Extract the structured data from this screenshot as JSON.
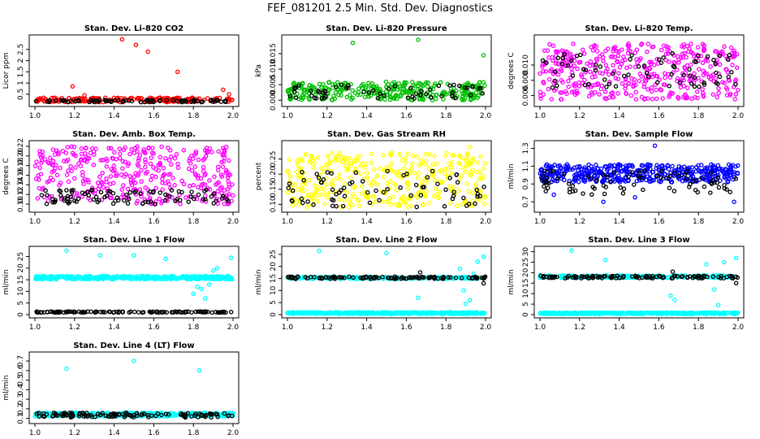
{
  "figure_title": "FEF_081201  2.5 Min. Std. Dev. Diagnostics",
  "chart_data": [
    {
      "type": "scatter",
      "title": "Stan. Dev. Li-820 CO2",
      "ylabel": "Licor ppm",
      "xlim": [
        1.0,
        2.0
      ],
      "ylim": [
        0.1,
        3.0
      ],
      "xticks": [
        "1.0",
        "1.2",
        "1.4",
        "1.6",
        "1.8",
        "2.0"
      ],
      "yticks": [
        {
          "v": 0.5,
          "label": "0.5"
        },
        {
          "v": 1.0,
          "label": "1"
        },
        {
          "v": 1.5,
          "label": "1.5"
        },
        {
          "v": 2.0,
          "label": "2"
        },
        {
          "v": 2.5,
          "label": "2.5"
        }
      ],
      "series": [
        {
          "color": "#ff0000",
          "x_range": [
            1.0,
            2.0
          ],
          "n": 200,
          "y_min": 0.15,
          "y_max": 0.35,
          "outliers": [
            [
              1.19,
              0.85
            ],
            [
              1.44,
              2.95
            ],
            [
              1.51,
              2.7
            ],
            [
              1.57,
              2.4
            ],
            [
              1.72,
              1.5
            ],
            [
              1.95,
              0.7
            ],
            [
              1.98,
              0.5
            ],
            [
              1.25,
              0.45
            ]
          ]
        },
        {
          "color": "#000000",
          "x_range": [
            1.0,
            2.0
          ],
          "n": 80,
          "y_min": 0.15,
          "y_max": 0.25,
          "outliers": []
        }
      ]
    },
    {
      "type": "scatter",
      "title": "Stan. Dev. Li-820 Pressure",
      "ylabel": "kPa",
      "xlim": [
        1.0,
        2.0
      ],
      "ylim": [
        -0.001,
        0.02
      ],
      "xticks": [
        "1.0",
        "1.2",
        "1.4",
        "1.6",
        "1.8",
        "2.0"
      ],
      "yticks": [
        {
          "v": 0.0,
          "label": "0.000"
        },
        {
          "v": 0.005,
          "label": "0.005"
        },
        {
          "v": 0.01,
          "label": "0.010"
        },
        {
          "v": 0.015,
          "label": "0.015"
        }
      ],
      "series": [
        {
          "color": "#00c000",
          "x_range": [
            1.0,
            2.0
          ],
          "n": 320,
          "y_min": 0.0,
          "y_max": 0.006,
          "outliers": [
            [
              1.33,
              0.0185
            ],
            [
              1.66,
              0.0195
            ],
            [
              1.99,
              0.0145
            ]
          ]
        },
        {
          "color": "#000000",
          "x_range": [
            1.0,
            2.0
          ],
          "n": 60,
          "y_min": 0.0005,
          "y_max": 0.005,
          "outliers": []
        }
      ]
    },
    {
      "type": "scatter",
      "title": "Stan. Dev. Li-820 Temp.",
      "ylabel": "degrees C",
      "xlim": [
        1.0,
        2.0
      ],
      "ylim": [
        0.005,
        0.0135
      ],
      "xticks": [
        "1.0",
        "1.2",
        "1.4",
        "1.6",
        "1.8",
        "2.0"
      ],
      "yticks": [
        {
          "v": 0.006,
          "label": "0.006"
        },
        {
          "v": 0.008,
          "label": "0.008"
        },
        {
          "v": 0.01,
          "label": "0.010"
        }
      ],
      "series": [
        {
          "color": "#ff00ff",
          "x_range": [
            1.0,
            2.0
          ],
          "n": 420,
          "y_min": 0.0055,
          "y_max": 0.0128,
          "outliers": []
        },
        {
          "color": "#000000",
          "x_range": [
            1.0,
            2.0
          ],
          "n": 70,
          "y_min": 0.007,
          "y_max": 0.0115,
          "outliers": []
        }
      ]
    },
    {
      "type": "scatter",
      "title": "Stan. Dev. Amb. Box Temp.",
      "ylabel": "degrees C",
      "xlim": [
        1.0,
        2.0
      ],
      "ylim": [
        0.09,
        0.225
      ],
      "xticks": [
        "1.0",
        "1.2",
        "1.4",
        "1.6",
        "1.8",
        "2.0"
      ],
      "yticks": [
        {
          "v": 0.1,
          "label": "0.10"
        },
        {
          "v": 0.12,
          "label": "0.12"
        },
        {
          "v": 0.14,
          "label": "0.14"
        },
        {
          "v": 0.16,
          "label": "0.16"
        },
        {
          "v": 0.18,
          "label": "0.18"
        },
        {
          "v": 0.2,
          "label": "0.20"
        },
        {
          "v": 0.22,
          "label": "0.22"
        }
      ],
      "series": [
        {
          "color": "#ff00ff",
          "x_range": [
            1.0,
            2.0
          ],
          "n": 380,
          "y_min": 0.1,
          "y_max": 0.22,
          "outliers": []
        },
        {
          "color": "#000000",
          "x_range": [
            1.0,
            2.0
          ],
          "n": 90,
          "y_min": 0.1,
          "y_max": 0.13,
          "outliers": []
        }
      ]
    },
    {
      "type": "scatter",
      "title": "Stan. Dev. Gas Stream RH",
      "ylabel": "percent",
      "xlim": [
        1.0,
        2.0
      ],
      "ylim": [
        0.085,
        0.3
      ],
      "xticks": [
        "1.0",
        "1.2",
        "1.4",
        "1.6",
        "1.8",
        "2.0"
      ],
      "yticks": [
        {
          "v": 0.1,
          "label": "0.10"
        },
        {
          "v": 0.15,
          "label": "0.15"
        },
        {
          "v": 0.2,
          "label": "0.20"
        },
        {
          "v": 0.25,
          "label": "0.25"
        }
      ],
      "series": [
        {
          "color": "#ffff00",
          "x_range": [
            1.0,
            2.0
          ],
          "n": 380,
          "y_min": 0.09,
          "y_max": 0.27,
          "outliers": [
            [
              1.92,
              0.29
            ]
          ]
        },
        {
          "color": "#000000",
          "x_range": [
            1.0,
            2.0
          ],
          "n": 70,
          "y_min": 0.09,
          "y_max": 0.21,
          "outliers": []
        }
      ]
    },
    {
      "type": "scatter",
      "title": "Stan. Dev. Sample Flow",
      "ylabel": "ml/min",
      "xlim": [
        1.0,
        2.0
      ],
      "ylim": [
        0.62,
        1.35
      ],
      "xticks": [
        "1.0",
        "1.2",
        "1.4",
        "1.6",
        "1.8",
        "2.0"
      ],
      "yticks": [
        {
          "v": 0.7,
          "label": "0.7"
        },
        {
          "v": 0.9,
          "label": "0.9"
        },
        {
          "v": 1.1,
          "label": "1.1"
        },
        {
          "v": 1.3,
          "label": "1.3"
        }
      ],
      "series": [
        {
          "color": "#0000ff",
          "x_range": [
            1.0,
            2.0
          ],
          "n": 430,
          "y_min": 0.92,
          "y_max": 1.12,
          "outliers": [
            [
              1.58,
              1.33
            ],
            [
              1.32,
              0.7
            ],
            [
              1.98,
              0.7
            ],
            [
              1.07,
              0.78
            ],
            [
              1.48,
              0.75
            ]
          ]
        },
        {
          "color": "#000000",
          "x_range": [
            1.0,
            2.0
          ],
          "n": 80,
          "y_min": 0.78,
          "y_max": 1.05,
          "outliers": []
        }
      ]
    },
    {
      "type": "scatter",
      "title": "Stan. Dev. Line 1 Flow",
      "ylabel": "ml/min",
      "xlim": [
        1.0,
        2.0
      ],
      "ylim": [
        0,
        28
      ],
      "xticks": [
        "1.0",
        "1.2",
        "1.4",
        "1.6",
        "1.8",
        "2.0"
      ],
      "yticks": [
        {
          "v": 0,
          "label": "0"
        },
        {
          "v": 5,
          "label": "5"
        },
        {
          "v": 10,
          "label": "10"
        },
        {
          "v": 15,
          "label": "15"
        },
        {
          "v": 20,
          "label": "20"
        },
        {
          "v": 25,
          "label": "25"
        }
      ],
      "series": [
        {
          "color": "#00ffff",
          "x_range": [
            1.0,
            2.0
          ],
          "n": 380,
          "y_min": 15.2,
          "y_max": 16.6,
          "outliers": [
            [
              1.16,
              27.5
            ],
            [
              1.33,
              25.5
            ],
            [
              1.5,
              25.5
            ],
            [
              1.66,
              24
            ],
            [
              1.99,
              24.5
            ],
            [
              1.8,
              9
            ],
            [
              1.84,
              11
            ],
            [
              1.86,
              7
            ],
            [
              1.88,
              13
            ],
            [
              1.9,
              19
            ],
            [
              1.92,
              20
            ],
            [
              1.82,
              12
            ]
          ]
        },
        {
          "color": "#000000",
          "x_range": [
            1.0,
            2.0
          ],
          "n": 120,
          "y_min": 0.9,
          "y_max": 1.3,
          "outliers": []
        }
      ]
    },
    {
      "type": "scatter",
      "title": "Stan. Dev. Line 2 Flow",
      "ylabel": "ml/min",
      "xlim": [
        1.0,
        2.0
      ],
      "ylim": [
        0,
        27
      ],
      "xticks": [
        "1.0",
        "1.2",
        "1.4",
        "1.6",
        "1.8",
        "2.0"
      ],
      "yticks": [
        {
          "v": 0,
          "label": "0"
        },
        {
          "v": 5,
          "label": "5"
        },
        {
          "v": 10,
          "label": "10"
        },
        {
          "v": 15,
          "label": "15"
        },
        {
          "v": 20,
          "label": "20"
        },
        {
          "v": 25,
          "label": "25"
        }
      ],
      "series": [
        {
          "color": "#00ffff",
          "x_range": [
            1.0,
            2.0
          ],
          "n": 400,
          "y_min": 0.3,
          "y_max": 1.0,
          "outliers": [
            [
              1.16,
              26.5
            ],
            [
              1.5,
              25.5
            ],
            [
              1.66,
              7
            ],
            [
              1.87,
              19
            ],
            [
              1.89,
              10
            ],
            [
              1.9,
              4.5
            ],
            [
              1.92,
              6
            ],
            [
              1.94,
              17
            ],
            [
              1.96,
              22
            ],
            [
              1.99,
              24
            ]
          ]
        },
        {
          "color": "#00ffff",
          "x_range": [
            1.0,
            1.98
          ],
          "n": 200,
          "y_min": 14.8,
          "y_max": 15.7,
          "outliers": []
        },
        {
          "color": "#000000",
          "x_range": [
            1.0,
            2.0
          ],
          "n": 110,
          "y_min": 14.8,
          "y_max": 15.8,
          "outliers": [
            [
              1.67,
              17.5
            ],
            [
              1.99,
              13
            ]
          ]
        }
      ]
    },
    {
      "type": "scatter",
      "title": "Stan. Dev. Line 3 Flow",
      "ylabel": "ml/min",
      "xlim": [
        1.0,
        2.0
      ],
      "ylim": [
        0,
        31
      ],
      "xticks": [
        "1.0",
        "1.2",
        "1.4",
        "1.6",
        "1.8",
        "2.0"
      ],
      "yticks": [
        {
          "v": 0,
          "label": "0"
        },
        {
          "v": 5,
          "label": "5"
        },
        {
          "v": 10,
          "label": "10"
        },
        {
          "v": 15,
          "label": "15"
        },
        {
          "v": 20,
          "label": "20"
        },
        {
          "v": 25,
          "label": "25"
        },
        {
          "v": 30,
          "label": "30"
        }
      ],
      "series": [
        {
          "color": "#00ffff",
          "x_range": [
            1.0,
            2.0
          ],
          "n": 400,
          "y_min": 0.3,
          "y_max": 1.0,
          "outliers": [
            [
              1.16,
              30.5
            ],
            [
              1.33,
              26
            ],
            [
              1.66,
              9
            ],
            [
              1.68,
              7
            ],
            [
              1.9,
              4.5
            ],
            [
              1.88,
              12
            ],
            [
              1.84,
              24
            ],
            [
              1.93,
              25
            ],
            [
              1.99,
              27
            ]
          ]
        },
        {
          "color": "#00ffff",
          "x_range": [
            1.0,
            1.98
          ],
          "n": 200,
          "y_min": 17.5,
          "y_max": 18.7,
          "outliers": []
        },
        {
          "color": "#000000",
          "x_range": [
            1.0,
            2.0
          ],
          "n": 110,
          "y_min": 17.3,
          "y_max": 18.5,
          "outliers": [
            [
              1.67,
              20.5
            ],
            [
              1.99,
              15
            ]
          ]
        }
      ]
    },
    {
      "type": "scatter",
      "title": "Stan. Dev. Line 4 (LT) Flow",
      "ylabel": "ml/min",
      "xlim": [
        1.0,
        2.0
      ],
      "ylim": [
        0.08,
        0.76
      ],
      "xticks": [
        "1.0",
        "1.2",
        "1.4",
        "1.6",
        "1.8",
        "2.0"
      ],
      "yticks": [
        {
          "v": 0.1,
          "label": "0.1"
        },
        {
          "v": 0.2,
          "label": "0.2"
        },
        {
          "v": 0.3,
          "label": "0.3"
        },
        {
          "v": 0.4,
          "label": "0.4"
        },
        {
          "v": 0.5,
          "label": "0.5"
        },
        {
          "v": 0.6,
          "label": "0.6"
        },
        {
          "v": 0.7,
          "label": "0.7"
        }
      ],
      "series": [
        {
          "color": "#00ffff",
          "x_range": [
            1.0,
            2.0
          ],
          "n": 400,
          "y_min": 0.12,
          "y_max": 0.16,
          "outliers": [
            [
              1.16,
              0.62
            ],
            [
              1.5,
              0.7
            ],
            [
              1.83,
              0.6
            ]
          ]
        },
        {
          "color": "#000000",
          "x_range": [
            1.0,
            2.0
          ],
          "n": 120,
          "y_min": 0.11,
          "y_max": 0.16,
          "outliers": []
        }
      ]
    }
  ]
}
